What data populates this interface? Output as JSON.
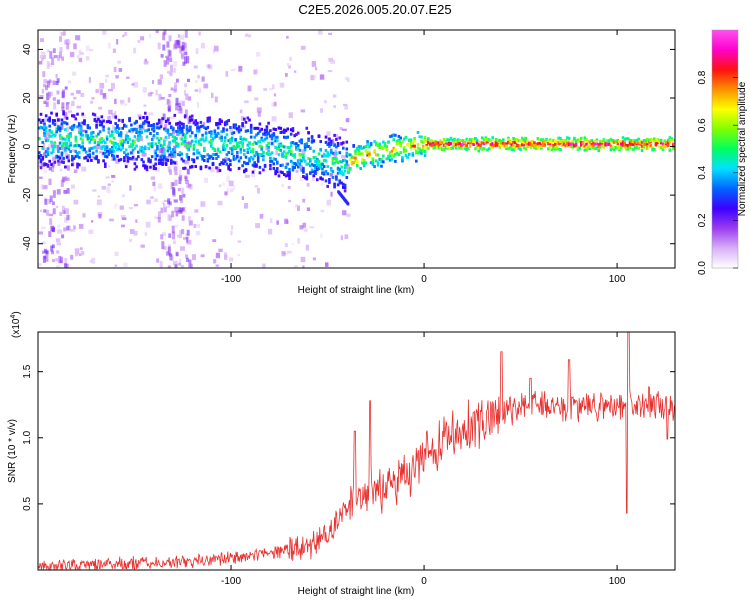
{
  "figure": {
    "title": "C2E5.2026.005.20.07.E25"
  },
  "chart_data": [
    {
      "type": "heatmap",
      "xlabel": "Height of straight line (km)",
      "ylabel": "Frequency (Hz)",
      "xlim": [
        -200,
        130
      ],
      "ylim": [
        -50,
        48
      ],
      "xticks": [
        -100,
        0,
        100
      ],
      "yticks": [
        -40,
        -20,
        0,
        20,
        40
      ],
      "ridge": [
        {
          "x": -200,
          "f": 3
        },
        {
          "x": -150,
          "f": 2
        },
        {
          "x": -110,
          "f": 1
        },
        {
          "x": -90,
          "f": 0
        },
        {
          "x": -75,
          "f": -2
        },
        {
          "x": -60,
          "f": -4
        },
        {
          "x": -50,
          "f": -6
        },
        {
          "x": -42,
          "f": -8
        },
        {
          "x": -35,
          "f": -5
        },
        {
          "x": -25,
          "f": -2
        },
        {
          "x": -10,
          "f": 0
        },
        {
          "x": 0,
          "f": 1
        },
        {
          "x": 20,
          "f": 1
        },
        {
          "x": 60,
          "f": 1
        },
        {
          "x": 100,
          "f": 1
        },
        {
          "x": 130,
          "f": 1
        }
      ],
      "secondary_feature": {
        "x_range": [
          -45,
          -40
        ],
        "f_range": [
          -18,
          -23
        ]
      },
      "colorbar": {
        "label": "Normalized spectral amplitude",
        "range": [
          0,
          1
        ],
        "ticks": [
          "0.0",
          "0.2",
          "0.4",
          "0.6",
          "0.8"
        ],
        "colors": [
          "#ffffff",
          "#d8b0f8",
          "#9b3cf0",
          "#3c00ff",
          "#0064ff",
          "#00e0ff",
          "#00ff60",
          "#7fff00",
          "#ffff00",
          "#ff9000",
          "#ff1010",
          "#ff00cc",
          "#ff50f0"
        ]
      }
    },
    {
      "type": "line",
      "xlabel": "Height of straight line (km)",
      "ylabel": "SNR (10 * v/v)",
      "scale_label": "(x10",
      "scale_exponent": "4",
      "scale_close": ")",
      "xlim": [
        -200,
        130
      ],
      "ylim": [
        0,
        18000
      ],
      "xticks": [
        -100,
        0,
        100
      ],
      "yticks": [
        5000,
        10000,
        15000
      ],
      "ytick_labels": [
        "0.5",
        "1.0",
        "1.5"
      ],
      "color": "#e8312f",
      "trend": [
        {
          "x": -200,
          "y": 300
        },
        {
          "x": -150,
          "y": 500
        },
        {
          "x": -110,
          "y": 700
        },
        {
          "x": -90,
          "y": 1000
        },
        {
          "x": -70,
          "y": 1500
        },
        {
          "x": -55,
          "y": 2200
        },
        {
          "x": -45,
          "y": 3500
        },
        {
          "x": -38,
          "y": 5000
        },
        {
          "x": -30,
          "y": 5500
        },
        {
          "x": -20,
          "y": 6300
        },
        {
          "x": -10,
          "y": 7000
        },
        {
          "x": 0,
          "y": 8500
        },
        {
          "x": 10,
          "y": 9800
        },
        {
          "x": 20,
          "y": 10800
        },
        {
          "x": 30,
          "y": 11300
        },
        {
          "x": 40,
          "y": 11800
        },
        {
          "x": 50,
          "y": 12400
        },
        {
          "x": 60,
          "y": 12500
        },
        {
          "x": 80,
          "y": 12400
        },
        {
          "x": 100,
          "y": 12300
        },
        {
          "x": 115,
          "y": 12600
        },
        {
          "x": 130,
          "y": 12300
        }
      ],
      "peaks": [
        {
          "x": -36,
          "y": 10500
        },
        {
          "x": -28,
          "y": 12800
        },
        {
          "x": 40,
          "y": 16500
        },
        {
          "x": 55,
          "y": 14500
        },
        {
          "x": 75,
          "y": 15900
        },
        {
          "x": 106,
          "y": 18000
        },
        {
          "x": 105,
          "y": 4300
        },
        {
          "x": 126,
          "y": 9900
        }
      ]
    }
  ]
}
